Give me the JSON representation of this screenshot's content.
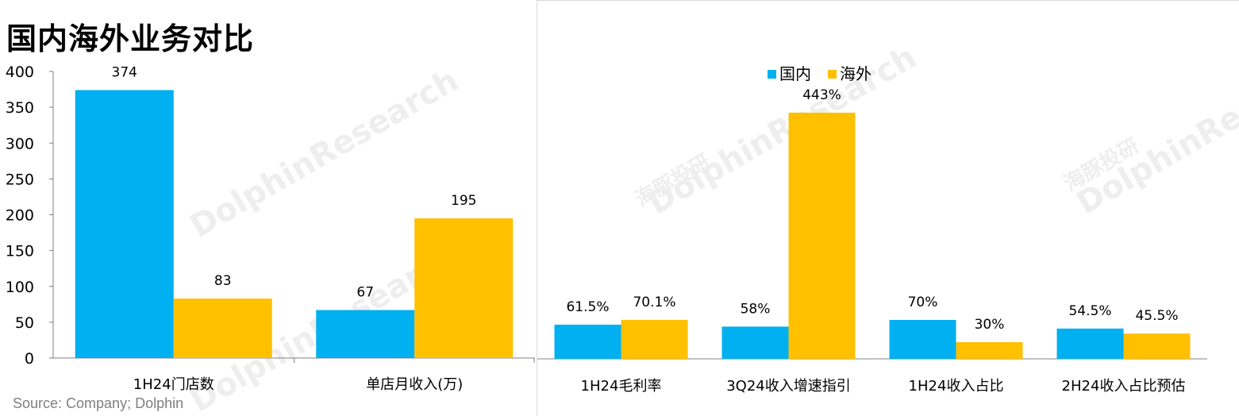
{
  "title": "国内海外业务对比",
  "source": "Source: Company; Dolphin",
  "colors": {
    "domestic": "#00B0F0",
    "overseas": "#FFC000"
  },
  "chart_data": [
    {
      "type": "bar",
      "categories": [
        "1H24门店数",
        "单店月收入(万)"
      ],
      "series": [
        {
          "name": "国内",
          "values": [
            374,
            67
          ]
        },
        {
          "name": "海外",
          "values": [
            83,
            195
          ]
        }
      ],
      "data_labels": [
        [
          "374",
          "67"
        ],
        [
          "83",
          "195"
        ]
      ],
      "ylim": [
        0,
        400
      ],
      "yticks": [
        "0",
        "50",
        "100",
        "150",
        "200",
        "250",
        "300",
        "350",
        "400"
      ],
      "grid": false
    },
    {
      "type": "bar",
      "categories": [
        "1H24毛利率",
        "3Q24收入增速指引",
        "1H24收入占比",
        "2H24收入占比预估"
      ],
      "series": [
        {
          "name": "国内",
          "values": [
            61.5,
            58,
            70,
            54.5
          ]
        },
        {
          "name": "海外",
          "values": [
            70.1,
            443,
            30,
            45.5
          ]
        }
      ],
      "data_labels": [
        [
          "61.5%",
          "58%",
          "70%",
          "54.5%"
        ],
        [
          "70.1%",
          "443%",
          "30%",
          "45.5%"
        ]
      ],
      "legend": {
        "position": "top",
        "entries": [
          "国内",
          "海外"
        ]
      },
      "y_axis_visible": false,
      "grid": false
    }
  ],
  "watermark": {
    "brand": "DolphinResearch",
    "cn": "海豚投研"
  }
}
